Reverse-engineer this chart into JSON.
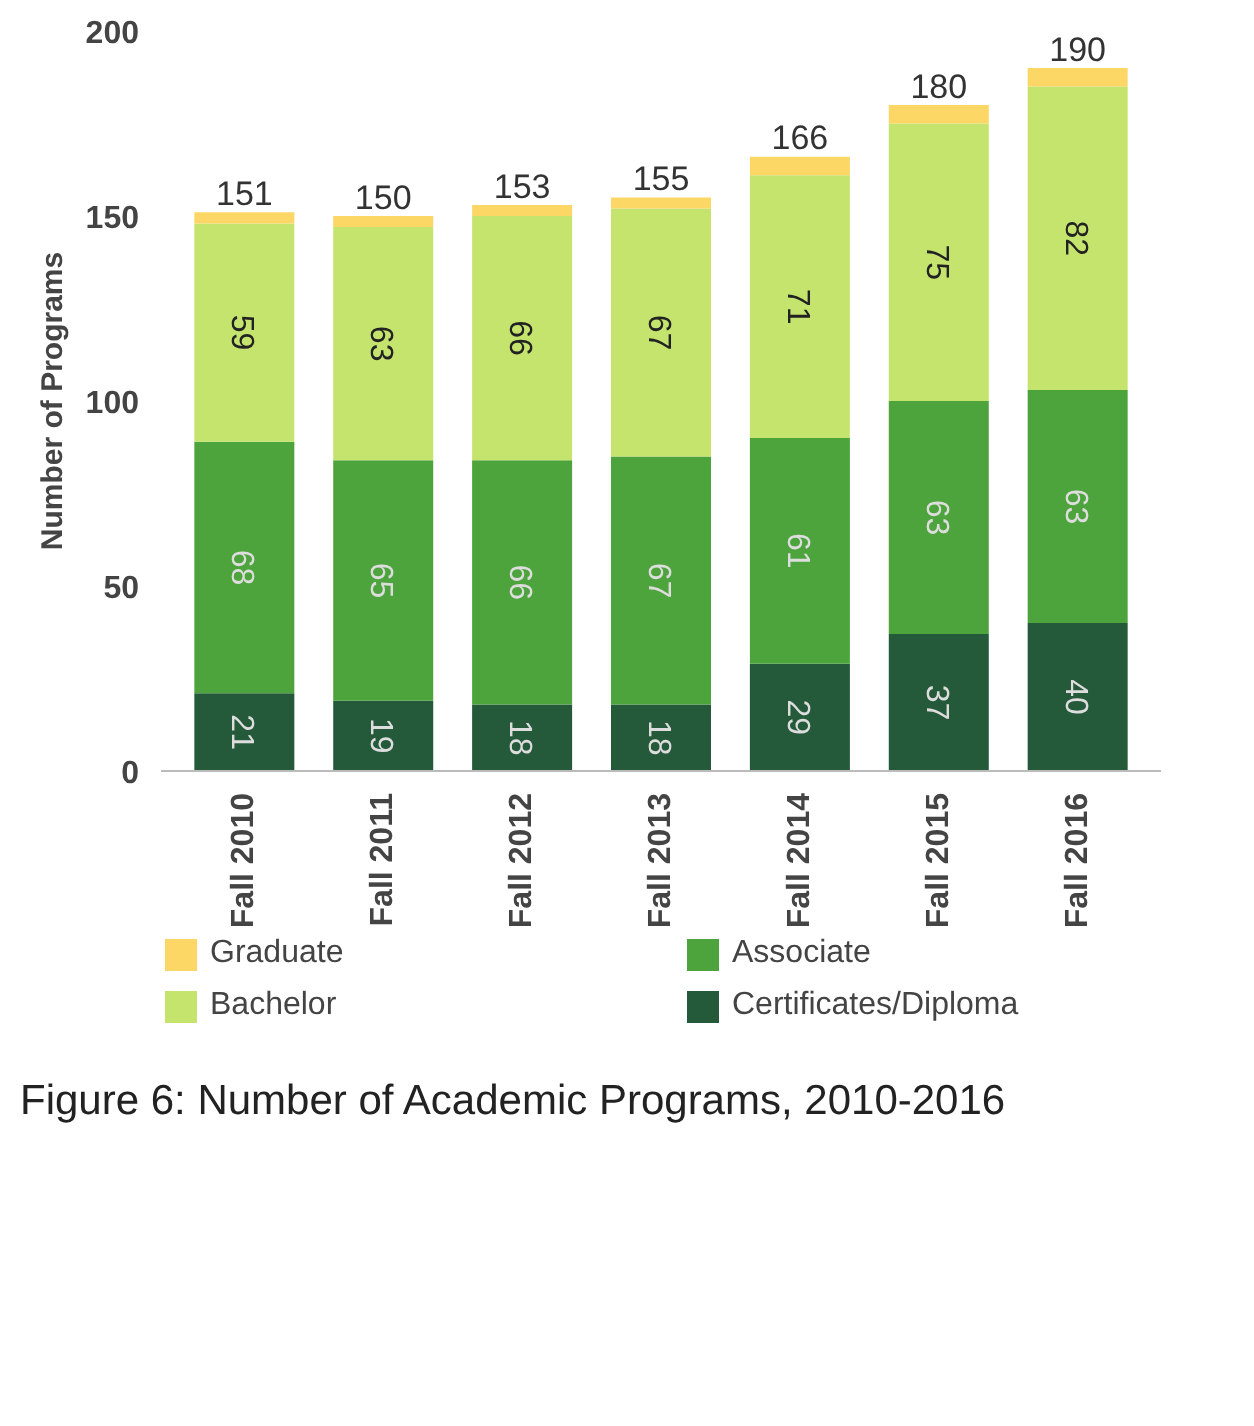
{
  "chart_data": {
    "type": "bar",
    "stacked": true,
    "ylabel": "Number of Programs",
    "categories": [
      "Fall 2010",
      "Fall 2011",
      "Fall 2012",
      "Fall 2013",
      "Fall 2014",
      "Fall 2015",
      "Fall 2016"
    ],
    "series": [
      {
        "name": "Certificates/Diploma",
        "color": "#24593a",
        "values": [
          21,
          19,
          18,
          18,
          29,
          37,
          40
        ],
        "value_labels": [
          "21",
          "19",
          "18",
          "18",
          "29",
          "37",
          "40"
        ]
      },
      {
        "name": "Associate",
        "color": "#4ea43c",
        "values": [
          68,
          65,
          66,
          67,
          61,
          63,
          63
        ],
        "value_labels": [
          "68",
          "65",
          "66",
          "67",
          "61",
          "63",
          "63"
        ]
      },
      {
        "name": "Bachelor",
        "color": "#c5e46e",
        "values": [
          59,
          63,
          66,
          67,
          71,
          75,
          82
        ],
        "value_labels": [
          "59",
          "63",
          "66",
          "67",
          "71",
          "75",
          "82"
        ]
      },
      {
        "name": "Graduate",
        "color": "#fcd766",
        "values": [
          3,
          3,
          3,
          3,
          5,
          5,
          5
        ]
      }
    ],
    "totals": [
      "151",
      "150",
      "153",
      "155",
      "166",
      "180",
      "190"
    ],
    "ylim": [
      0,
      200
    ],
    "yticks": [
      0,
      50,
      100,
      150,
      200
    ],
    "grid": false,
    "legend": "bottom",
    "annotations": [
      "Figure 6: Number of Academic Programs, 2010-2016"
    ]
  }
}
